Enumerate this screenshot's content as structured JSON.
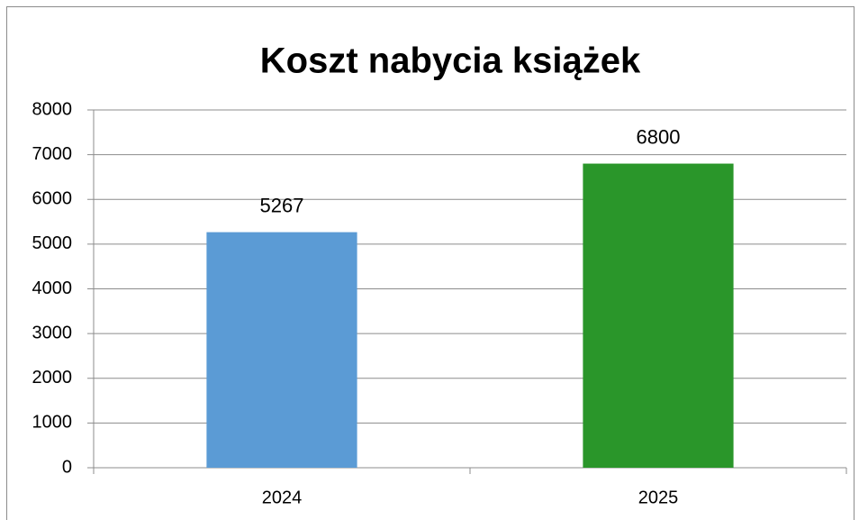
{
  "chart_data": {
    "type": "bar",
    "title": "Koszt nabycia książek",
    "categories": [
      "2024",
      "2025"
    ],
    "values": [
      5267,
      6800
    ],
    "colors": [
      "#5b9bd5",
      "#2a962a"
    ],
    "ylim": [
      0,
      8000
    ],
    "yticks": [
      0,
      1000,
      2000,
      3000,
      4000,
      5000,
      6000,
      7000,
      8000
    ],
    "grid": true
  }
}
